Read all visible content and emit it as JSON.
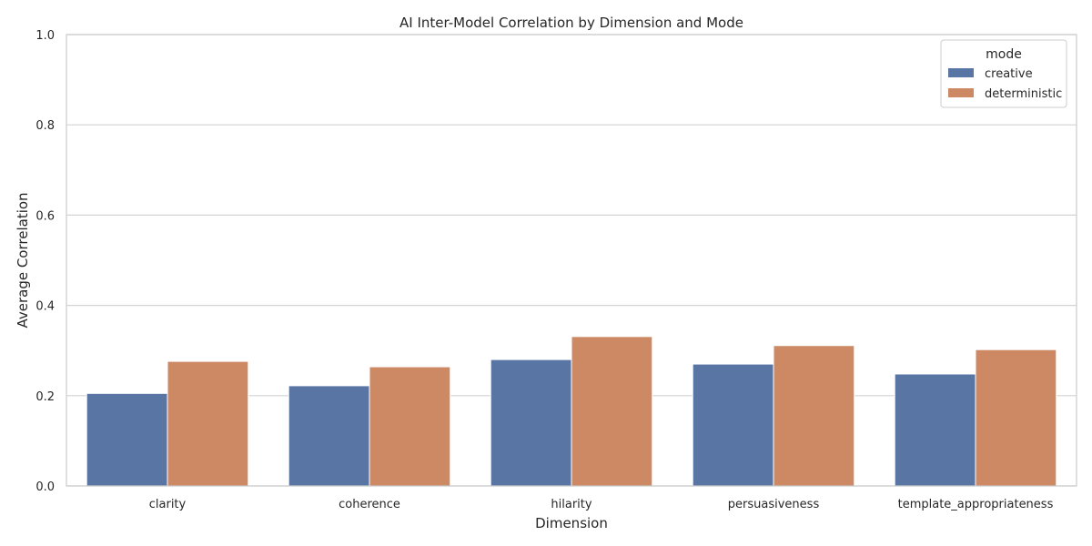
{
  "chart_data": {
    "type": "bar",
    "title": "AI Inter-Model Correlation by Dimension and Mode",
    "xlabel": "Dimension",
    "ylabel": "Average Correlation",
    "ylim": [
      0,
      1.0
    ],
    "yticks": [
      "0.0",
      "0.2",
      "0.4",
      "0.6",
      "0.8",
      "1.0"
    ],
    "categories": [
      "clarity",
      "coherence",
      "hilarity",
      "persuasiveness",
      "template_appropriateness"
    ],
    "series": [
      {
        "name": "creative",
        "color": "#5875a4",
        "values": [
          0.205,
          0.222,
          0.28,
          0.27,
          0.248
        ]
      },
      {
        "name": "deterministic",
        "color": "#cc8963",
        "values": [
          0.276,
          0.264,
          0.331,
          0.311,
          0.302
        ]
      }
    ],
    "legend": {
      "title": "mode",
      "position": "top-right"
    },
    "grid": true
  }
}
